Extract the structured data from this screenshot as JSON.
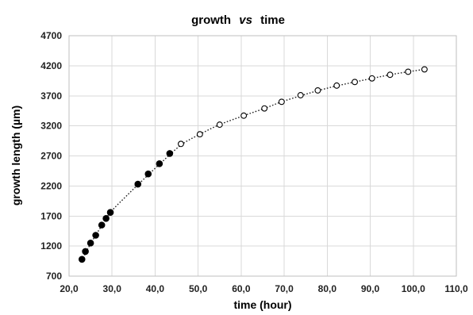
{
  "chart_data": {
    "type": "scatter",
    "title": {
      "part1": "growth",
      "part2": "vs",
      "part3": "time"
    },
    "xlabel": "time (hour)",
    "ylabel": "growth length (µm)",
    "xlim": [
      20,
      110
    ],
    "ylim": [
      700,
      4700
    ],
    "x_ticks": [
      "20,0",
      "30,0",
      "40,0",
      "50,0",
      "60,0",
      "70,0",
      "80,0",
      "90,0",
      "100,0",
      "110,0"
    ],
    "y_ticks": [
      "700",
      "1200",
      "1700",
      "2200",
      "2700",
      "3200",
      "3700",
      "4200",
      "4700"
    ],
    "grid": true,
    "legend": "none",
    "series": [
      {
        "marker": "filled-circle",
        "color": "#000000",
        "points": [
          {
            "x": 23.0,
            "y": 980
          },
          {
            "x": 23.8,
            "y": 1110
          },
          {
            "x": 25.0,
            "y": 1250
          },
          {
            "x": 26.2,
            "y": 1380
          },
          {
            "x": 27.6,
            "y": 1550
          },
          {
            "x": 28.6,
            "y": 1660
          },
          {
            "x": 29.6,
            "y": 1760
          },
          {
            "x": 36.0,
            "y": 2230
          },
          {
            "x": 38.4,
            "y": 2400
          },
          {
            "x": 41.0,
            "y": 2570
          },
          {
            "x": 43.4,
            "y": 2740
          }
        ]
      },
      {
        "marker": "open-circle",
        "color": "#000000",
        "points": [
          {
            "x": 46.0,
            "y": 2900
          },
          {
            "x": 50.4,
            "y": 3060
          },
          {
            "x": 55.0,
            "y": 3220
          },
          {
            "x": 60.6,
            "y": 3370
          },
          {
            "x": 65.4,
            "y": 3490
          },
          {
            "x": 69.4,
            "y": 3600
          },
          {
            "x": 73.8,
            "y": 3710
          },
          {
            "x": 77.8,
            "y": 3790
          },
          {
            "x": 82.2,
            "y": 3870
          },
          {
            "x": 86.4,
            "y": 3930
          },
          {
            "x": 90.4,
            "y": 3990
          },
          {
            "x": 94.6,
            "y": 4050
          },
          {
            "x": 98.8,
            "y": 4100
          },
          {
            "x": 102.6,
            "y": 4140
          }
        ]
      }
    ],
    "trendline": {
      "style": "dotted",
      "color": "#222222",
      "x": [
        23.0,
        25.0,
        27.6,
        29.6,
        33.0,
        36.0,
        41.0,
        46.0,
        50.4,
        55.0,
        60.6,
        65.4,
        69.4,
        73.8,
        77.8,
        82.2,
        86.4,
        90.4,
        94.6,
        98.8,
        102.6
      ],
      "y": [
        960,
        1240,
        1540,
        1760,
        2010,
        2220,
        2560,
        2880,
        3060,
        3220,
        3370,
        3490,
        3600,
        3700,
        3785,
        3865,
        3930,
        3990,
        4050,
        4100,
        4140
      ]
    }
  }
}
